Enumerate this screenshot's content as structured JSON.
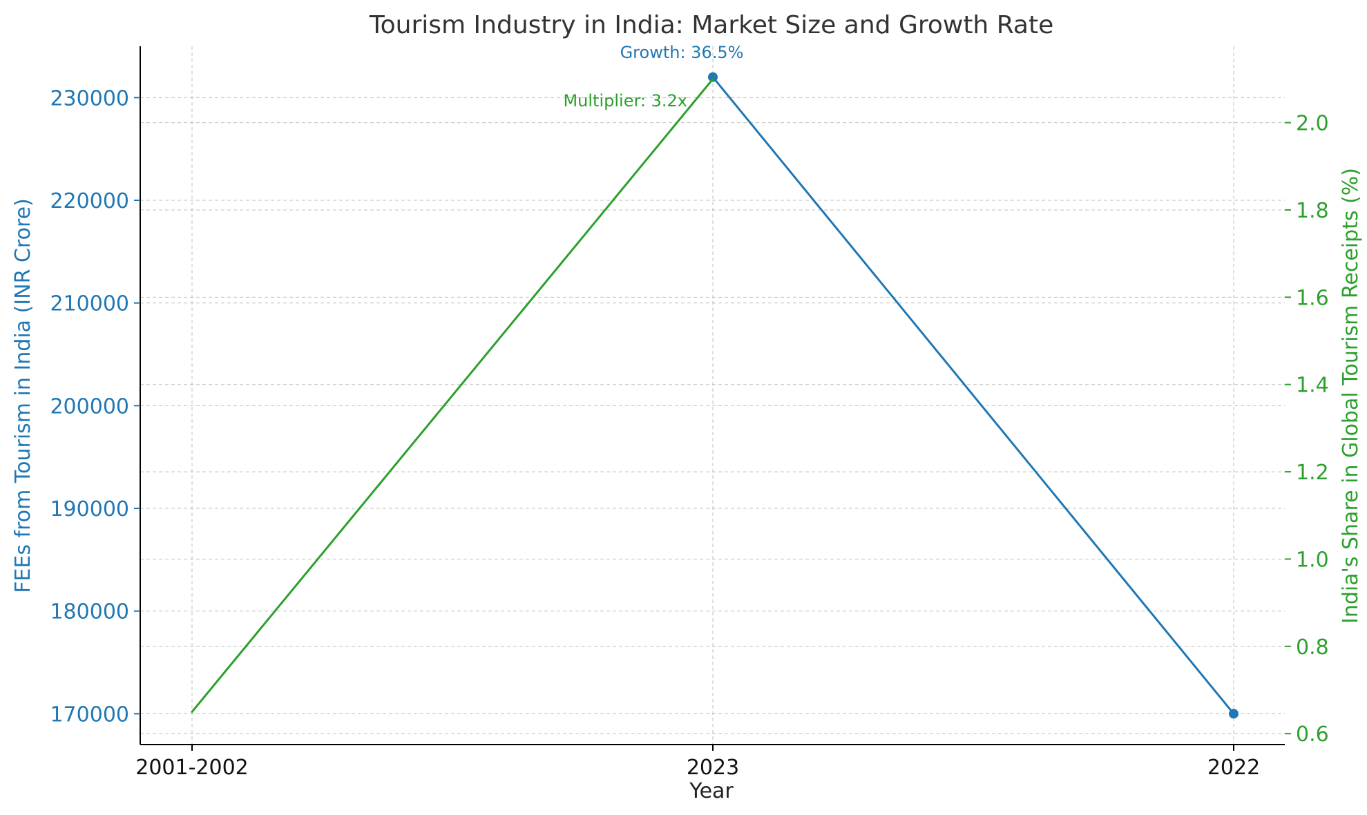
{
  "chart_data": {
    "type": "line",
    "title": "Tourism Industry in India: Market Size and Growth Rate",
    "xlabel": "Year",
    "categories": [
      "2001-2002",
      "2023",
      "2022"
    ],
    "left_axis": {
      "label": "FEEs from Tourism in India (INR Crore)",
      "range": [
        167000,
        235000
      ],
      "ticks": [
        170000,
        180000,
        190000,
        200000,
        210000,
        220000,
        230000
      ],
      "color": "#1f77b4"
    },
    "right_axis": {
      "label": "India's Share in Global Tourism Receipts (%)",
      "range": [
        0.575,
        2.175
      ],
      "ticks": [
        "0.6",
        "0.8",
        "1.0",
        "1.2",
        "1.4",
        "1.6",
        "1.8",
        "2.0"
      ],
      "color": "#2ca02c"
    },
    "series": [
      {
        "axis": "left",
        "color": "#1f77b4",
        "markers": true,
        "values": [
          null,
          232000,
          170000
        ]
      },
      {
        "axis": "right",
        "color": "#2ca02c",
        "markers": false,
        "values": [
          0.65,
          2.1,
          null
        ]
      }
    ],
    "annotations": [
      {
        "text": "Growth: 36.5%",
        "color": "#1f77b4"
      },
      {
        "text": "Multiplier: 3.2x",
        "color": "#2ca02c"
      }
    ],
    "grid": true,
    "legend": "none"
  }
}
